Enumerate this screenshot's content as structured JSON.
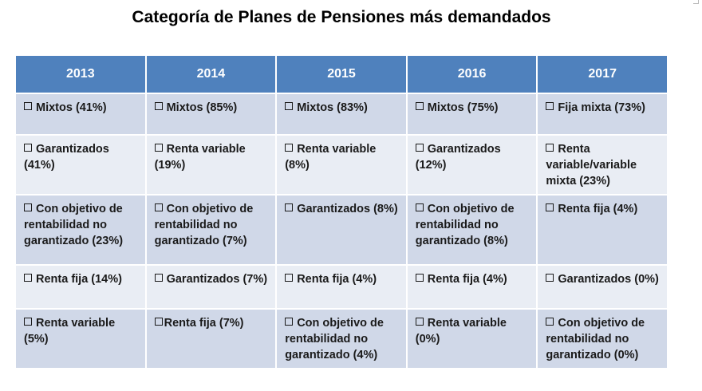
{
  "title": "Categoría de Planes de Pensiones más demandados",
  "colors": {
    "header_bg": "#4f81bd",
    "row_dark": "#d0d8e8",
    "row_light": "#e9edf4"
  },
  "table": {
    "years": [
      "2013",
      "2014",
      "2015",
      "2016",
      "2017"
    ],
    "rows": [
      [
        "Mixtos (41%)",
        "Mixtos (85%)",
        "Mixtos (83%)",
        "Mixtos (75%)",
        "Fija mixta (73%)"
      ],
      [
        "Garantizados (41%)",
        "Renta variable (19%)",
        "Renta variable (8%)",
        "Garantizados (12%)",
        "Renta variable/variable mixta (23%)"
      ],
      [
        "Con objetivo de rentabilidad no garantizado (23%)",
        "Con objetivo de rentabilidad no garantizado (7%)",
        "Garantizados (8%)",
        "Con objetivo de rentabilidad no garantizado (8%)",
        "Renta fija (4%)"
      ],
      [
        "Renta fija (14%)",
        "Garantizados (7%)",
        "Renta fija (4%)",
        "Renta fija (4%)",
        "Garantizados (0%)"
      ],
      [
        "Renta variable (5%)",
        "Renta fija (7%)",
        "Con objetivo de rentabilidad no garantizado (4%)",
        "Renta variable (0%)",
        "Con objetivo de rentabilidad no garantizado (0%)"
      ]
    ]
  }
}
